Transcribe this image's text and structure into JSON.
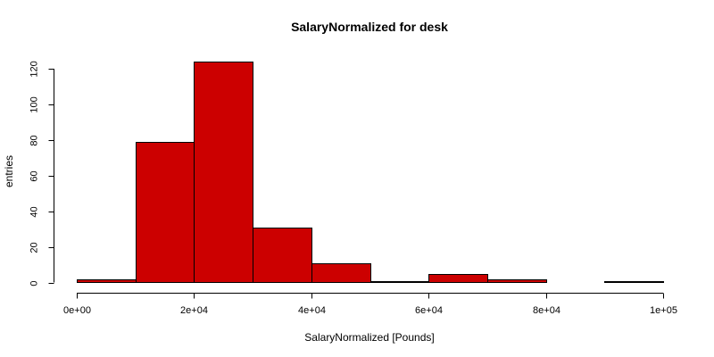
{
  "chart_data": {
    "type": "bar",
    "title": "SalaryNormalized for desk",
    "xlabel": "SalaryNormalized [Pounds]",
    "ylabel": "entries",
    "bins": [
      {
        "start": 0,
        "end": 10000,
        "count": 2
      },
      {
        "start": 10000,
        "end": 20000,
        "count": 79
      },
      {
        "start": 20000,
        "end": 30000,
        "count": 124
      },
      {
        "start": 30000,
        "end": 40000,
        "count": 31
      },
      {
        "start": 40000,
        "end": 50000,
        "count": 11
      },
      {
        "start": 50000,
        "end": 60000,
        "count": 1
      },
      {
        "start": 60000,
        "end": 70000,
        "count": 5
      },
      {
        "start": 70000,
        "end": 80000,
        "count": 2
      },
      {
        "start": 80000,
        "end": 90000,
        "count": 0
      },
      {
        "start": 90000,
        "end": 100000,
        "count": 1
      }
    ],
    "xlim": [
      0,
      100000
    ],
    "ylim": [
      0,
      124
    ],
    "x_ticks": [
      0,
      20000,
      40000,
      60000,
      80000,
      100000
    ],
    "x_tick_labels": [
      "0e+00",
      "2e+04",
      "4e+04",
      "6e+04",
      "8e+04",
      "1e+05"
    ],
    "y_ticks": [
      0,
      20,
      40,
      60,
      80,
      100,
      120
    ],
    "y_tick_labels": [
      "0",
      "20",
      "40",
      "60",
      "80",
      "100",
      "120"
    ],
    "grid": false,
    "bar_color": "#CC0000",
    "edge_color": "#000000"
  }
}
